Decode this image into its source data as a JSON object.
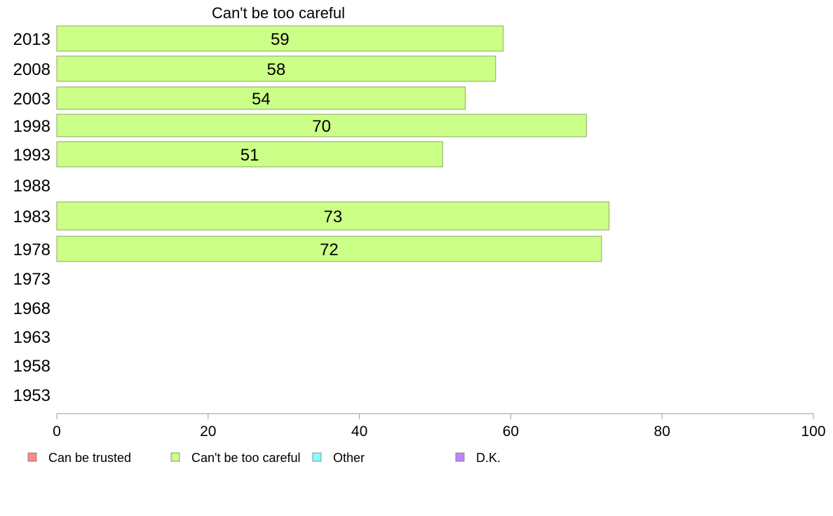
{
  "chart_data": {
    "type": "bar",
    "orientation": "horizontal",
    "title": "Can't be too careful",
    "categories": [
      "2013",
      "2008",
      "2003",
      "1998",
      "1993",
      "1988",
      "1983",
      "1978",
      "1973",
      "1968",
      "1963",
      "1958",
      "1953"
    ],
    "series": [
      {
        "name": "Can't be too careful",
        "values": [
          59,
          58,
          54,
          70,
          51,
          null,
          73,
          72,
          null,
          null,
          null,
          null,
          null
        ],
        "color": "#ccff88"
      }
    ],
    "value_labels": [
      "59",
      "58",
      "54",
      "70",
      "51",
      "",
      "73",
      "72",
      "",
      "",
      "",
      "",
      ""
    ],
    "xlim": [
      0,
      100
    ],
    "xticks": [
      0,
      20,
      40,
      60,
      80,
      100
    ],
    "xlabel": "",
    "ylabel": "",
    "grid": false,
    "legend": {
      "position": "bottom",
      "entries": [
        {
          "label": "Can be trusted",
          "color": "#ff8888"
        },
        {
          "label": "Can't be too careful",
          "color": "#ccff88"
        },
        {
          "label": "Other",
          "color": "#88ffff"
        },
        {
          "label": "D.K.",
          "color": "#bb88ff"
        }
      ]
    },
    "colors": {
      "bar_stroke": "#88aa66",
      "axis": "#999999"
    }
  }
}
